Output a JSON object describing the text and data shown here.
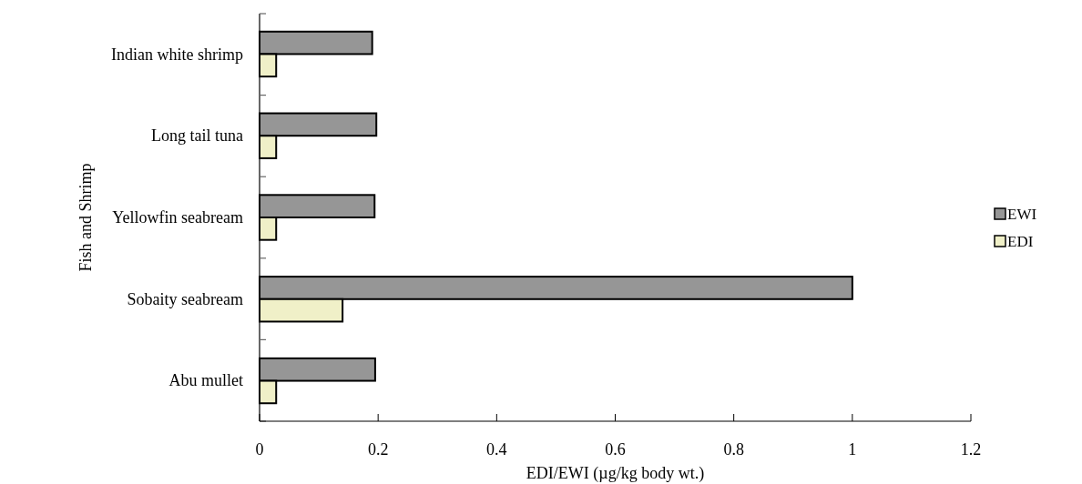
{
  "chart_data": {
    "type": "bar",
    "orientation": "horizontal",
    "categories": [
      "Indian white shrimp",
      "Long tail tuna",
      "Yellowfin seabream",
      "Sobaity seabream",
      "Abu mullet"
    ],
    "series": [
      {
        "name": "EWI",
        "color": "#969696",
        "values": [
          0.19,
          0.197,
          0.194,
          1.0,
          0.195
        ]
      },
      {
        "name": "EDI",
        "color": "#f0f0c8",
        "values": [
          0.028,
          0.028,
          0.028,
          0.14,
          0.028
        ]
      }
    ],
    "xlim": [
      0,
      1.2
    ],
    "xticks": [
      0,
      0.2,
      0.4,
      0.6,
      0.8,
      1,
      1.2
    ],
    "xlabel": "EDI/EWI (µg/kg body wt.)",
    "ylabel": "Fish and Shrimp",
    "legend": "right",
    "grid": false
  }
}
